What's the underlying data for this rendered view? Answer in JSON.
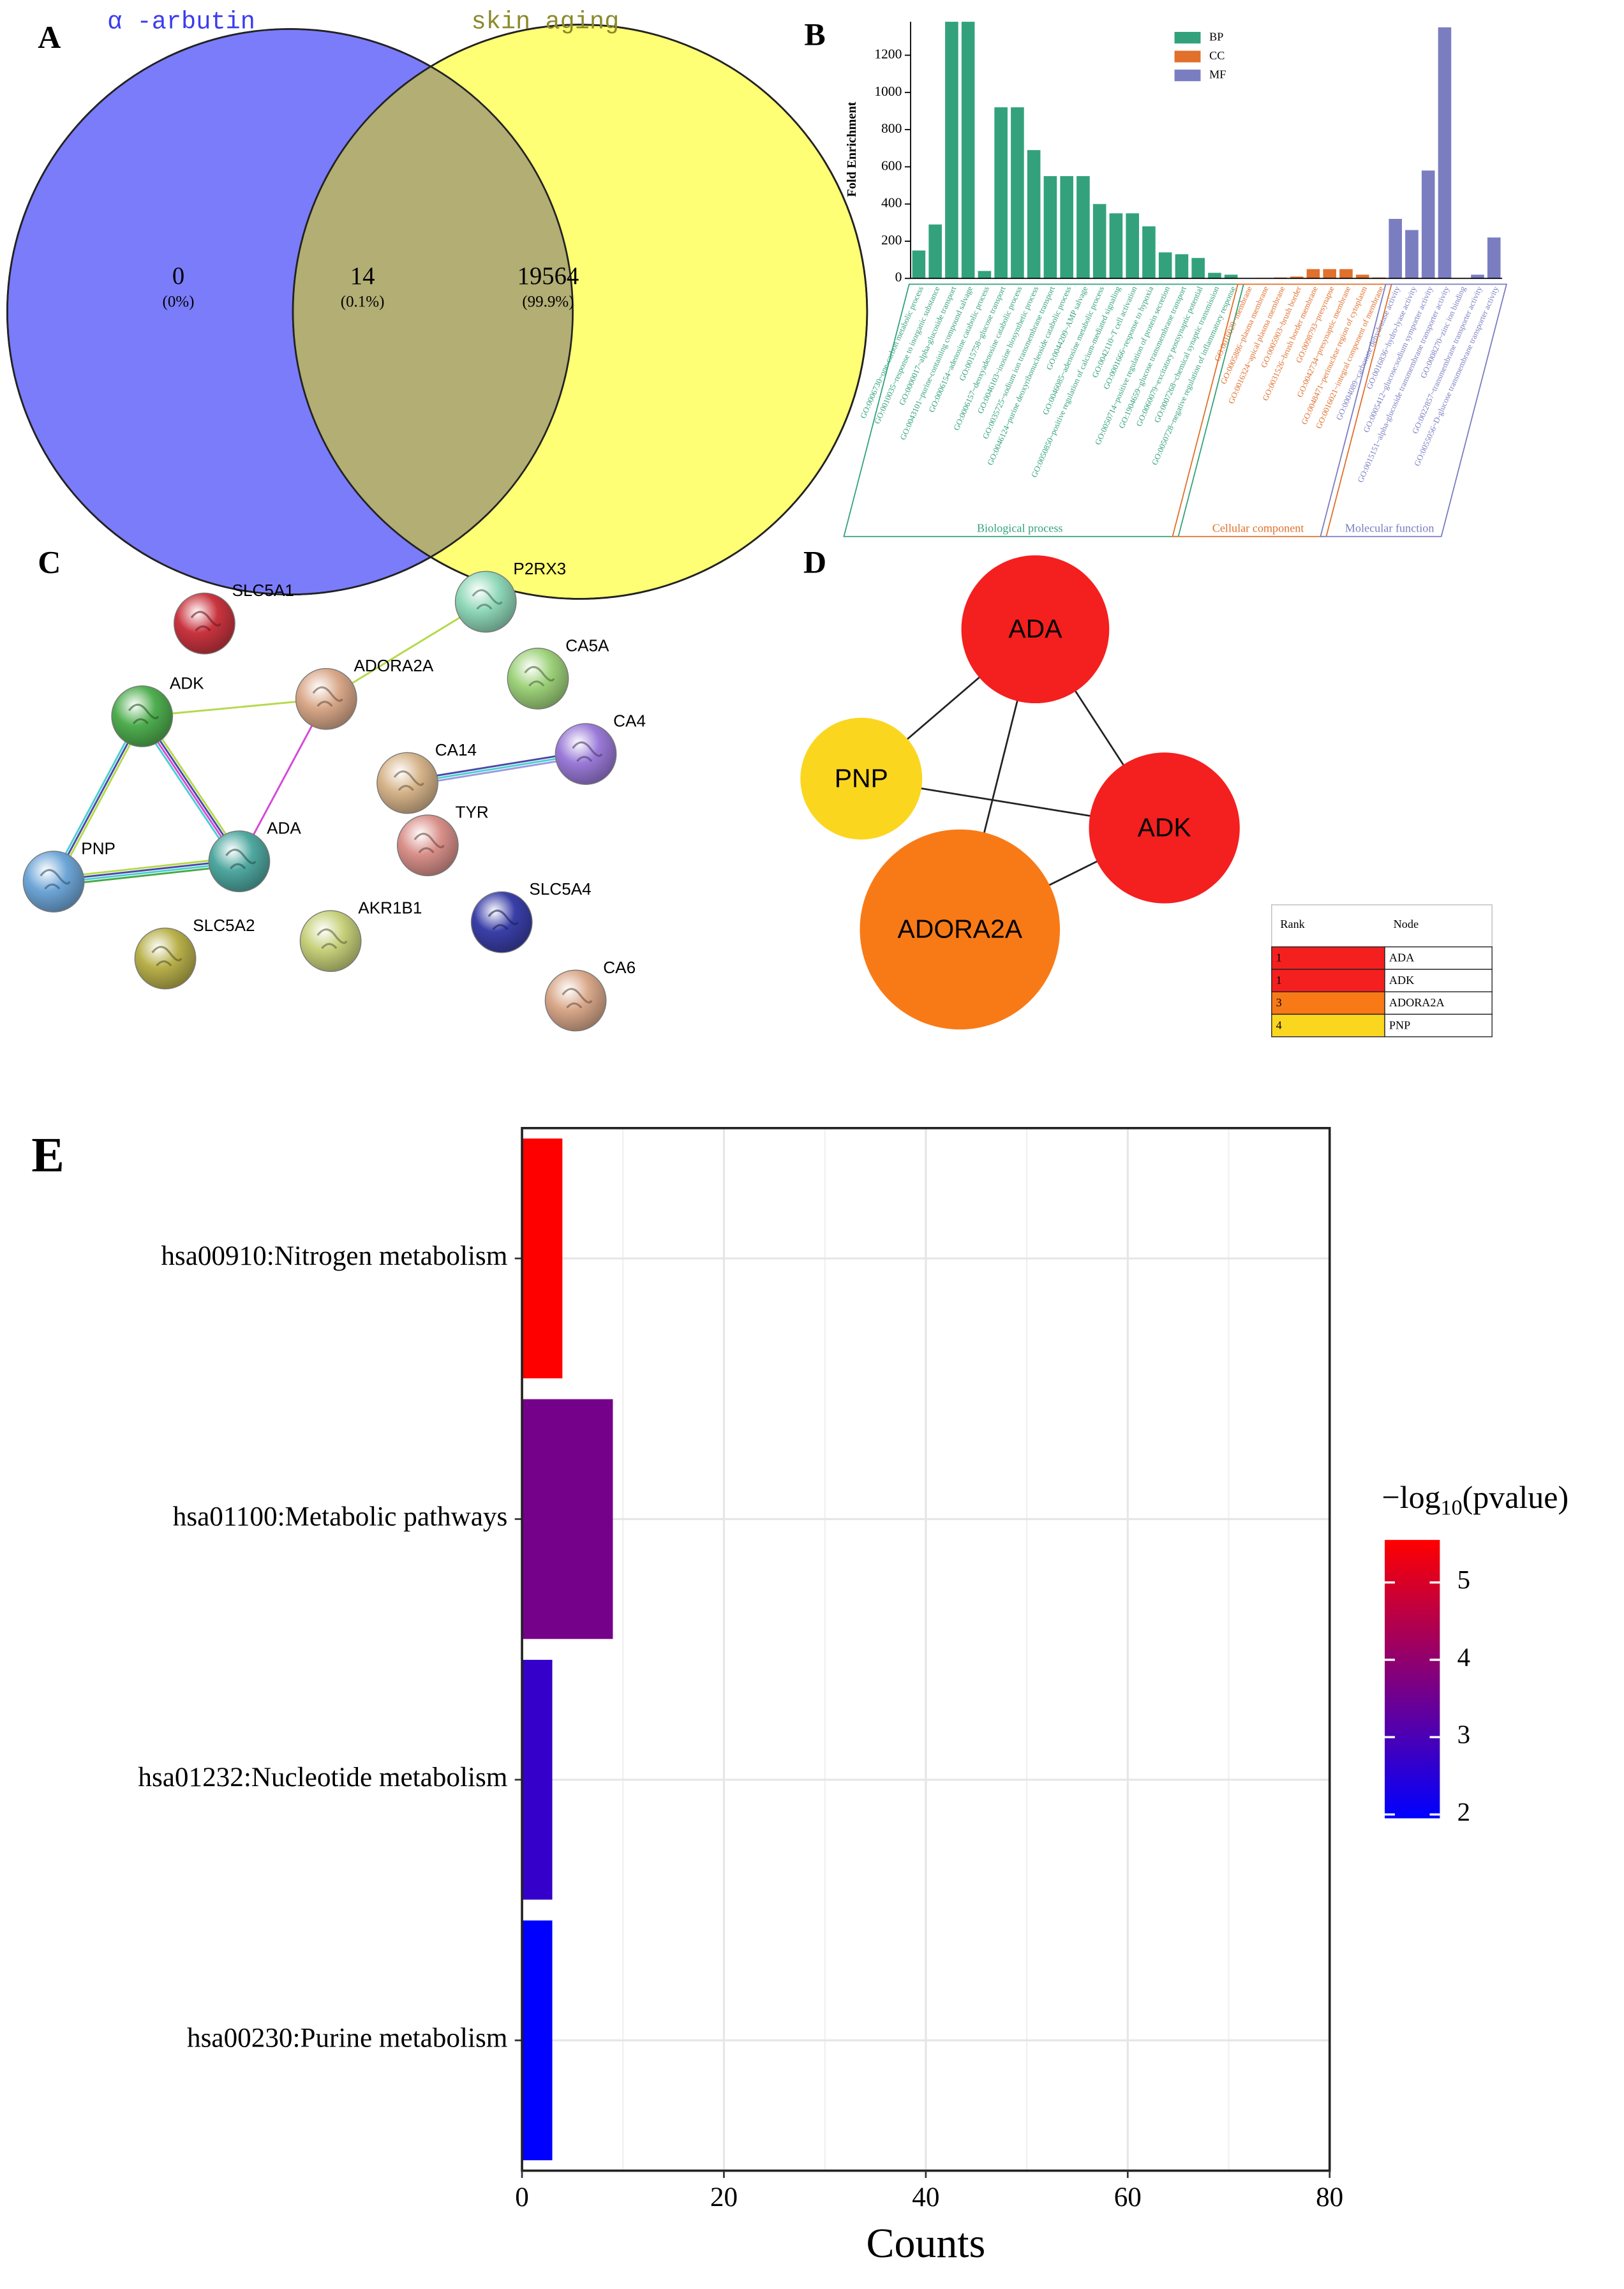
{
  "chart_data": [
    {
      "type": "venn",
      "panel_label": "A",
      "sets": [
        {
          "name": "α -arbutin",
          "color": "#7b7cfa",
          "label_color": "#3b3bf0"
        },
        {
          "name": "skin aging",
          "color": "#ffff75",
          "label_color": "#8c8a2c"
        }
      ],
      "overlap_color": "#b2ae74",
      "values": [
        0,
        14,
        19564
      ],
      "percent_labels": [
        "(0%)",
        "(0.1%)",
        "(99.9%)"
      ]
    },
    {
      "type": "bar",
      "panel_label": "B",
      "ylabel": "Fold Enrichment",
      "categories": [
        "GO:0006730~one-carbon metabolic process",
        "GO:0010035~response to inorganic substance",
        "GO:0000017~alpha-glucoside transport",
        "GO:0043101~purine-containing compound salvage",
        "GO:0006154~adenosine catabolic process",
        "GO:0015758~glucose transport",
        "GO:0006157~deoxyadenosine catabolic process",
        "GO:0046103~inosine biosynthetic process",
        "GO:0035725~sodium ion transmembrane transport",
        "GO:0046124~purine deoxyribonucleoside catabolic process",
        "GO:0044209~AMP salvage",
        "GO:0046085~adenosine metabolic process",
        "GO:0050850~positive regulation of calcium-mediated signaling",
        "GO:0042110~T cell activation",
        "GO:0001666~response to hypoxia",
        "GO:0050714~positive regulation of protein secretion",
        "GO:1904659~glucose transmembrane transport",
        "GO:0060079~excitatory postsynaptic potential",
        "GO:0007268~chemical synaptic transmission",
        "GO:0050728~negative regulation of inflammatory response",
        "GO:0016020~membrane",
        "GO:0005886~plasma membrane",
        "GO:0016324~apical plasma membrane",
        "GO:0005903~brush border",
        "GO:0031526~brush border membrane",
        "GO:0098793~presynapse",
        "GO:0042734~presynaptic membrane",
        "GO:0048471~perinuclear region of cytoplasm",
        "GO:0016021~integral component of membrane",
        "GO:0004089~carbonate dehydratase activity",
        "GO:0016836~hydro-lyase activity",
        "GO:0005412~glucose:sodium symporter activity",
        "GO:0015151~alpha-glucoside transmembrane transporter activity",
        "GO:0008270~zinc ion binding",
        "GO:0022857~transmembrane transporter activity",
        "GO:0055056~D-glucose transmembrane transporter activity"
      ],
      "series": [
        {
          "name": "BP",
          "group_label": "Biological process",
          "color": "#33a27c",
          "values": [
            150,
            290,
            1380,
            1380,
            40,
            920,
            920,
            690,
            550,
            550,
            550,
            400,
            350,
            350,
            280,
            140,
            130,
            110,
            30,
            20,
            null,
            null,
            null,
            null,
            null,
            null,
            null,
            null,
            null,
            null,
            null,
            null,
            null,
            null,
            null,
            null
          ]
        },
        {
          "name": "CC",
          "group_label": "Cellular component",
          "color": "#e0702c",
          "values": [
            null,
            null,
            null,
            null,
            null,
            null,
            null,
            null,
            null,
            null,
            null,
            null,
            null,
            null,
            null,
            null,
            null,
            null,
            null,
            null,
            2,
            3,
            5,
            10,
            50,
            50,
            50,
            20,
            5,
            null,
            null,
            null,
            null,
            null,
            null,
            null
          ]
        },
        {
          "name": "MF",
          "group_label": "Molecular function",
          "color": "#7a7ec0",
          "values": [
            null,
            null,
            null,
            null,
            null,
            null,
            null,
            null,
            null,
            null,
            null,
            null,
            null,
            null,
            null,
            null,
            null,
            null,
            null,
            null,
            null,
            null,
            null,
            null,
            null,
            null,
            null,
            null,
            null,
            320,
            260,
            580,
            1350,
            0,
            20,
            220
          ]
        }
      ],
      "ylim": [
        0,
        1380
      ],
      "yticks": [
        0,
        200,
        400,
        600,
        800,
        1000,
        1200
      ]
    },
    {
      "type": "network",
      "panel_label": "C",
      "nodes": [
        {
          "label": "SLC5A1",
          "color": "#c9343f"
        },
        {
          "label": "P2RX3",
          "color": "#8fd8b8"
        },
        {
          "label": "ADORA2A",
          "color": "#d9a889"
        },
        {
          "label": "CA5A",
          "color": "#9ed27a"
        },
        {
          "label": "ADK",
          "color": "#4fae4f"
        },
        {
          "label": "CA4",
          "color": "#9a7ad8"
        },
        {
          "label": "CA14",
          "color": "#d6b48a"
        },
        {
          "label": "TYR",
          "color": "#d9908a"
        },
        {
          "label": "PNP",
          "color": "#6ea6d8"
        },
        {
          "label": "ADA",
          "color": "#4fa8a0"
        },
        {
          "label": "SLC5A4",
          "color": "#3a3fa8"
        },
        {
          "label": "SLC5A2",
          "color": "#b8b04a"
        },
        {
          "label": "AKR1B1",
          "color": "#c6d07a"
        },
        {
          "label": "CA6",
          "color": "#d9a88a"
        }
      ],
      "edges": [
        {
          "source": "ADK",
          "target": "ADORA2A",
          "colors": [
            "#b5d94a"
          ]
        },
        {
          "source": "ADORA2A",
          "target": "P2RX3",
          "colors": [
            "#b5d94a"
          ]
        },
        {
          "source": "ADORA2A",
          "target": "ADA",
          "colors": [
            "#d64ad6"
          ]
        },
        {
          "source": "ADK",
          "target": "ADA",
          "colors": [
            "#b5d94a",
            "#4a4aa8",
            "#d64ad6",
            "#4ad0d0"
          ]
        },
        {
          "source": "ADK",
          "target": "PNP",
          "colors": [
            "#b5d94a",
            "#4a4aa8",
            "#4ad0d0"
          ]
        },
        {
          "source": "PNP",
          "target": "ADA",
          "colors": [
            "#b5d94a",
            "#4a4aa8",
            "#4ad0d0",
            "#4aa84a"
          ]
        },
        {
          "source": "CA14",
          "target": "CA4",
          "colors": [
            "#4a4aa8",
            "#4ad0d0",
            "#9a9ae0"
          ]
        }
      ]
    },
    {
      "type": "network",
      "panel_label": "D",
      "nodes": [
        {
          "label": "ADA",
          "color": "#f41f1f"
        },
        {
          "label": "PNP",
          "color": "#fbd61f"
        },
        {
          "label": "ADK",
          "color": "#f41f1f"
        },
        {
          "label": "ADORA2A",
          "color": "#f87a17"
        }
      ],
      "edges": [
        {
          "source": "ADA",
          "target": "PNP"
        },
        {
          "source": "ADA",
          "target": "ADK"
        },
        {
          "source": "ADA",
          "target": "ADORA2A"
        },
        {
          "source": "PNP",
          "target": "ADK"
        },
        {
          "source": "ADK",
          "target": "ADORA2A"
        }
      ],
      "table": {
        "columns": [
          "Rank",
          "Node"
        ],
        "rows": [
          [
            1,
            "ADA"
          ],
          [
            1,
            "ADK"
          ],
          [
            3,
            "ADORA2A"
          ],
          [
            4,
            "PNP"
          ]
        ]
      }
    },
    {
      "type": "hbar",
      "panel_label": "E",
      "categories": [
        "hsa00910:Nitrogen metabolism",
        "hsa01100:Metabolic pathways",
        "hsa01232:Nucleotide metabolism",
        "hsa00230:Purine metabolism"
      ],
      "values": [
        4,
        9,
        3,
        3
      ],
      "color_values": [
        5.55,
        3.6,
        2.7,
        1.95
      ],
      "xlabel": "Counts",
      "xlim": [
        0,
        80
      ],
      "xticks": [
        0,
        20,
        40,
        60,
        80
      ],
      "grid": true,
      "colorbar": {
        "title": [
          "−log",
          "10",
          "(pvalue)"
        ],
        "lim": [
          1.95,
          5.55
        ],
        "ticks": [
          2,
          3,
          4,
          5
        ],
        "colors": [
          "#0000ff",
          "#ff0000"
        ]
      }
    }
  ]
}
